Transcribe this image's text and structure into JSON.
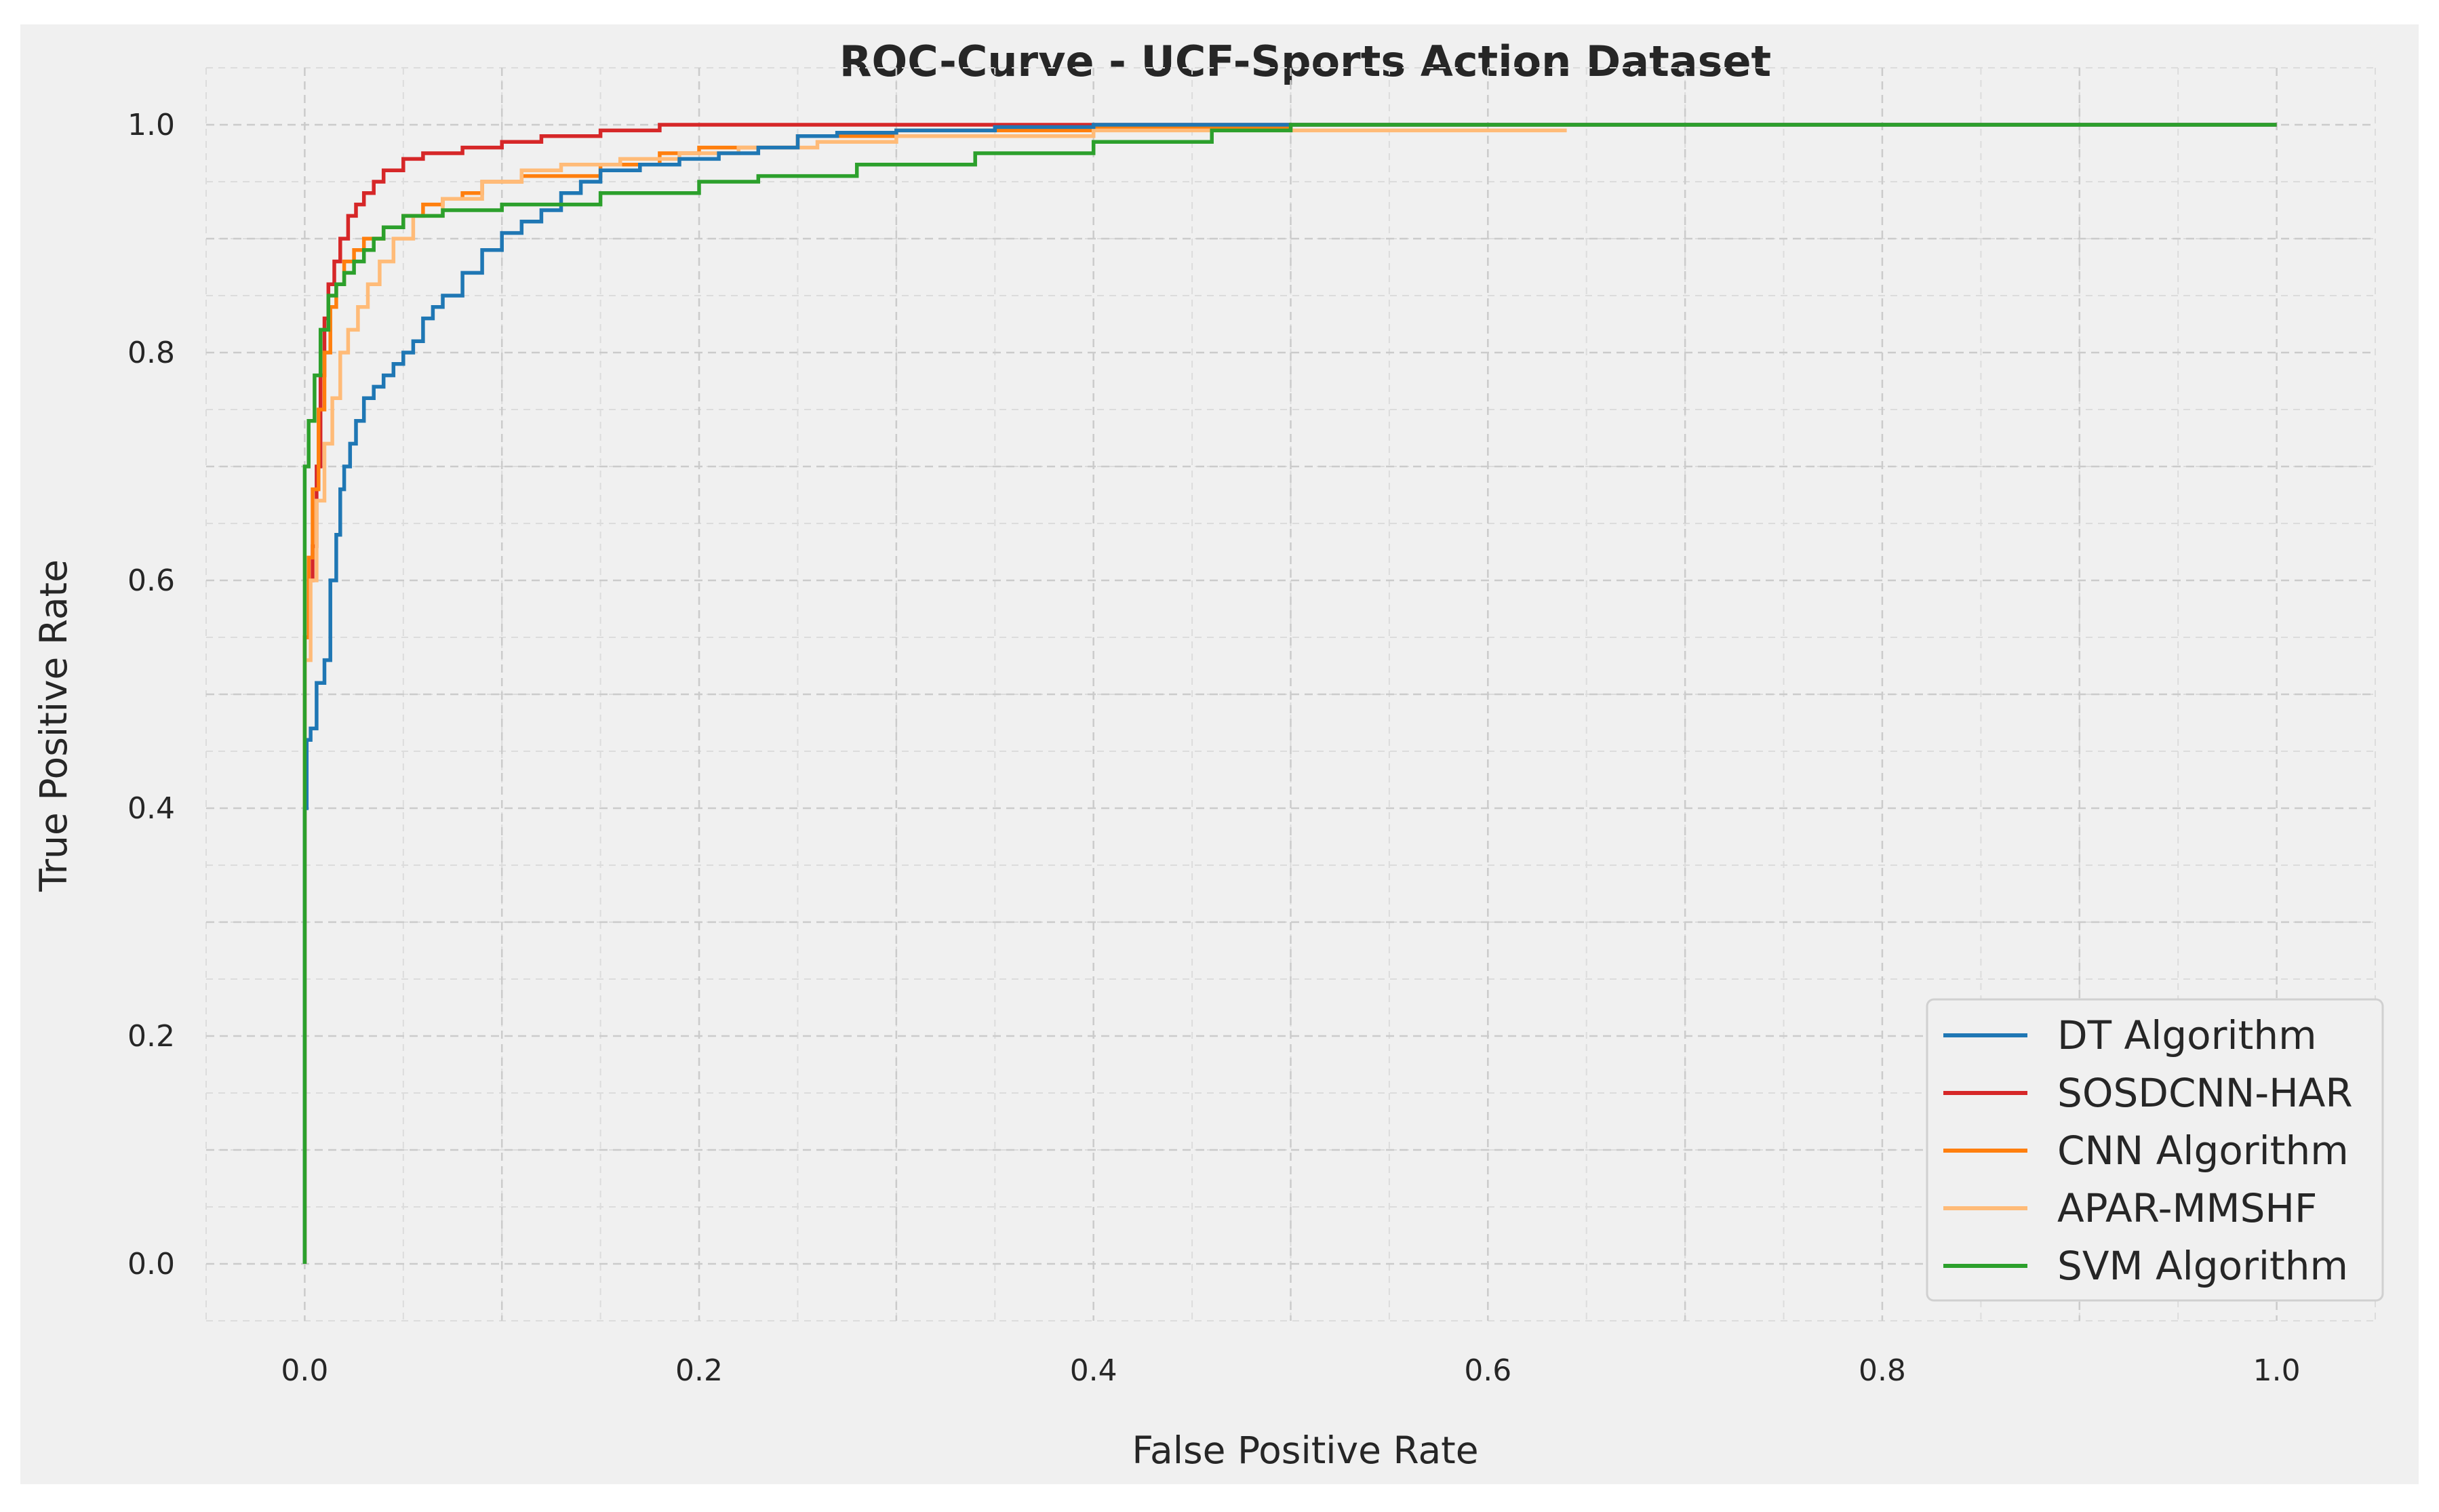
{
  "chart_data": {
    "type": "line",
    "title": "ROC-Curve - UCF-Sports Action Dataset",
    "xlabel": "False Positive Rate",
    "ylabel": "True Positive Rate",
    "xlim": [
      -0.05,
      1.05
    ],
    "ylim": [
      -0.05,
      1.05
    ],
    "xticks": [
      "0.0",
      "0.2",
      "0.4",
      "0.6",
      "0.8",
      "1.0"
    ],
    "yticks": [
      "0.0",
      "0.2",
      "0.4",
      "0.6",
      "0.8",
      "1.0"
    ],
    "grid": true,
    "legend_position": "lower-right",
    "series": [
      {
        "name": "DT Algorithm",
        "color": "#1f77b4",
        "x": [
          0,
          0,
          0.001,
          0.001,
          0.003,
          0.003,
          0.006,
          0.006,
          0.01,
          0.01,
          0.013,
          0.013,
          0.016,
          0.016,
          0.018,
          0.018,
          0.02,
          0.02,
          0.023,
          0.023,
          0.026,
          0.026,
          0.03,
          0.03,
          0.035,
          0.035,
          0.04,
          0.04,
          0.045,
          0.045,
          0.05,
          0.05,
          0.055,
          0.055,
          0.06,
          0.06,
          0.065,
          0.065,
          0.07,
          0.07,
          0.08,
          0.08,
          0.09,
          0.09,
          0.1,
          0.1,
          0.11,
          0.11,
          0.12,
          0.12,
          0.13,
          0.13,
          0.14,
          0.14,
          0.15,
          0.15,
          0.17,
          0.17,
          0.19,
          0.19,
          0.21,
          0.21,
          0.23,
          0.23,
          0.25,
          0.25,
          0.27,
          0.27,
          0.3,
          0.3,
          0.35,
          0.35,
          0.4,
          0.4,
          0.5,
          0.5,
          1.0
        ],
        "y": [
          0,
          0.4,
          0.4,
          0.46,
          0.46,
          0.47,
          0.47,
          0.51,
          0.51,
          0.53,
          0.53,
          0.6,
          0.6,
          0.64,
          0.64,
          0.68,
          0.68,
          0.7,
          0.7,
          0.72,
          0.72,
          0.74,
          0.74,
          0.76,
          0.76,
          0.77,
          0.77,
          0.78,
          0.78,
          0.79,
          0.79,
          0.8,
          0.8,
          0.81,
          0.81,
          0.83,
          0.83,
          0.84,
          0.84,
          0.85,
          0.85,
          0.87,
          0.87,
          0.89,
          0.89,
          0.905,
          0.905,
          0.915,
          0.915,
          0.925,
          0.925,
          0.94,
          0.94,
          0.95,
          0.95,
          0.96,
          0.96,
          0.965,
          0.965,
          0.97,
          0.97,
          0.975,
          0.975,
          0.98,
          0.98,
          0.99,
          0.99,
          0.993,
          0.993,
          0.995,
          0.995,
          0.998,
          0.998,
          1.0,
          1.0,
          1.0,
          1.0
        ]
      },
      {
        "name": "SOSDCNN-HAR",
        "color": "#d62728",
        "x": [
          0,
          0,
          0.002,
          0.002,
          0.004,
          0.004,
          0.006,
          0.006,
          0.008,
          0.008,
          0.01,
          0.01,
          0.012,
          0.012,
          0.015,
          0.015,
          0.018,
          0.018,
          0.022,
          0.022,
          0.026,
          0.026,
          0.03,
          0.03,
          0.035,
          0.035,
          0.04,
          0.04,
          0.05,
          0.05,
          0.06,
          0.06,
          0.08,
          0.08,
          0.1,
          0.1,
          0.12,
          0.12,
          0.15,
          0.15,
          0.18,
          0.18,
          0.4,
          0.4,
          1.0
        ],
        "y": [
          0,
          0.55,
          0.55,
          0.6,
          0.6,
          0.63,
          0.63,
          0.7,
          0.7,
          0.78,
          0.78,
          0.83,
          0.83,
          0.86,
          0.86,
          0.88,
          0.88,
          0.9,
          0.9,
          0.92,
          0.92,
          0.93,
          0.93,
          0.94,
          0.94,
          0.95,
          0.95,
          0.96,
          0.96,
          0.97,
          0.97,
          0.975,
          0.975,
          0.98,
          0.98,
          0.985,
          0.985,
          0.99,
          0.99,
          0.995,
          0.995,
          1.0,
          1.0,
          1.0,
          1.0
        ]
      },
      {
        "name": "CNN Algorithm",
        "color": "#ff7f0e",
        "x": [
          0,
          0,
          0.002,
          0.002,
          0.004,
          0.004,
          0.007,
          0.007,
          0.01,
          0.01,
          0.013,
          0.013,
          0.016,
          0.016,
          0.02,
          0.02,
          0.025,
          0.025,
          0.03,
          0.03,
          0.04,
          0.04,
          0.05,
          0.05,
          0.06,
          0.06,
          0.07,
          0.07,
          0.08,
          0.08,
          0.09,
          0.09,
          0.11,
          0.11,
          0.15,
          0.15,
          0.18,
          0.18,
          0.2,
          0.2,
          0.25,
          0.25,
          0.3,
          0.3,
          0.4,
          0.4,
          0.5,
          0.5,
          1.0
        ],
        "y": [
          0,
          0.55,
          0.55,
          0.62,
          0.62,
          0.68,
          0.68,
          0.75,
          0.75,
          0.8,
          0.8,
          0.84,
          0.84,
          0.86,
          0.86,
          0.88,
          0.88,
          0.89,
          0.89,
          0.9,
          0.9,
          0.91,
          0.91,
          0.92,
          0.92,
          0.93,
          0.93,
          0.935,
          0.935,
          0.94,
          0.94,
          0.95,
          0.95,
          0.955,
          0.955,
          0.965,
          0.965,
          0.975,
          0.975,
          0.98,
          0.98,
          0.99,
          0.99,
          0.995,
          0.995,
          0.998,
          0.998,
          1.0,
          1.0
        ]
      },
      {
        "name": "APAR-MMSHF",
        "color": "#ffbb78",
        "x": [
          0,
          0,
          0.003,
          0.003,
          0.006,
          0.006,
          0.01,
          0.01,
          0.014,
          0.014,
          0.018,
          0.018,
          0.022,
          0.022,
          0.027,
          0.027,
          0.032,
          0.032,
          0.038,
          0.038,
          0.045,
          0.045,
          0.055,
          0.055,
          0.07,
          0.07,
          0.09,
          0.09,
          0.11,
          0.11,
          0.13,
          0.13,
          0.16,
          0.16,
          0.19,
          0.19,
          0.22,
          0.22,
          0.26,
          0.26,
          0.3,
          0.3,
          0.4,
          0.4,
          0.64
        ],
        "y": [
          0,
          0.53,
          0.53,
          0.6,
          0.6,
          0.67,
          0.67,
          0.72,
          0.72,
          0.76,
          0.76,
          0.8,
          0.8,
          0.82,
          0.82,
          0.84,
          0.84,
          0.86,
          0.86,
          0.88,
          0.88,
          0.9,
          0.9,
          0.92,
          0.92,
          0.935,
          0.935,
          0.95,
          0.95,
          0.96,
          0.96,
          0.965,
          0.965,
          0.97,
          0.97,
          0.975,
          0.975,
          0.98,
          0.98,
          0.985,
          0.985,
          0.99,
          0.99,
          0.995,
          0.995
        ]
      },
      {
        "name": "SVM Algorithm",
        "color": "#2ca02c",
        "x": [
          0,
          0,
          0.002,
          0.002,
          0.005,
          0.005,
          0.008,
          0.008,
          0.012,
          0.012,
          0.016,
          0.016,
          0.02,
          0.02,
          0.025,
          0.025,
          0.03,
          0.03,
          0.035,
          0.035,
          0.04,
          0.04,
          0.05,
          0.05,
          0.07,
          0.07,
          0.1,
          0.1,
          0.15,
          0.15,
          0.2,
          0.2,
          0.23,
          0.23,
          0.28,
          0.28,
          0.34,
          0.34,
          0.4,
          0.4,
          0.46,
          0.46,
          0.5,
          0.5,
          1.0
        ],
        "y": [
          0,
          0.7,
          0.7,
          0.74,
          0.74,
          0.78,
          0.78,
          0.82,
          0.82,
          0.85,
          0.85,
          0.86,
          0.86,
          0.87,
          0.87,
          0.88,
          0.88,
          0.89,
          0.89,
          0.9,
          0.9,
          0.91,
          0.91,
          0.92,
          0.92,
          0.925,
          0.925,
          0.93,
          0.93,
          0.94,
          0.94,
          0.95,
          0.95,
          0.955,
          0.955,
          0.965,
          0.965,
          0.975,
          0.975,
          0.985,
          0.985,
          0.995,
          0.995,
          1.0,
          1.0
        ]
      }
    ]
  }
}
